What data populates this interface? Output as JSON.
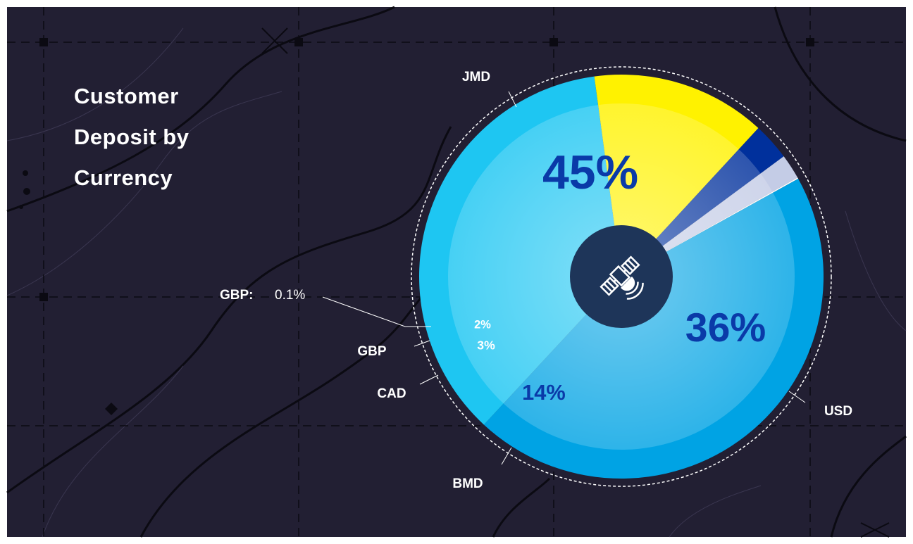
{
  "chart_data": {
    "type": "pie",
    "title": "Customer Deposit by Currency",
    "categories": [
      "JMD",
      "USD",
      "BMD",
      "CAD",
      "GBP",
      "GBP:"
    ],
    "values": [
      45,
      36,
      14,
      3,
      2,
      0.1
    ],
    "value_labels": [
      "45%",
      "36%",
      "14%",
      "3%",
      "2%",
      "0.1%"
    ],
    "colors": [
      "#00a3e4",
      "#1ec6f2",
      "#fff200",
      "#00309c",
      "#c4cce6",
      "#ffffff"
    ]
  }
}
